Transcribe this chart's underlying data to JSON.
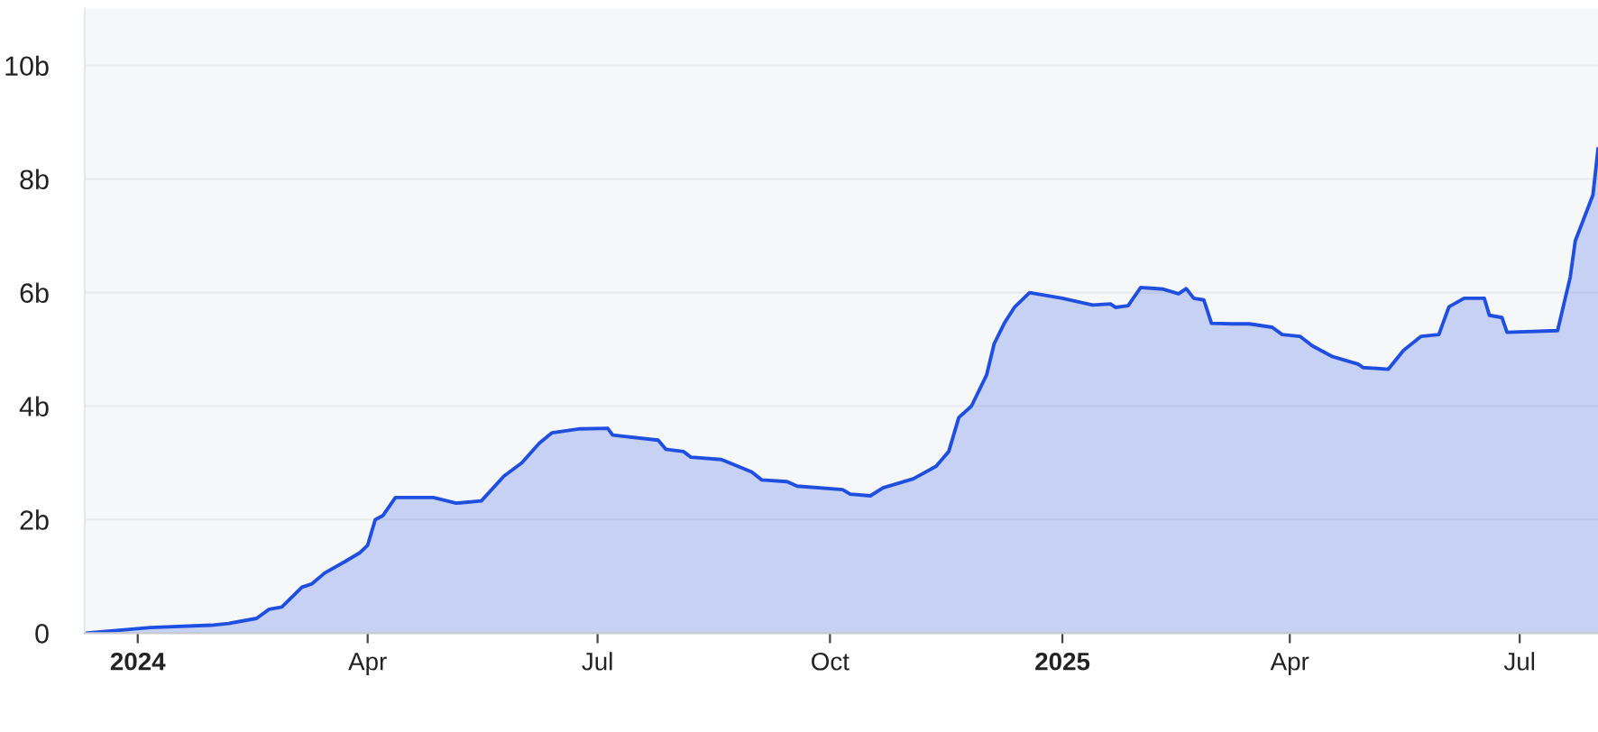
{
  "chart_data": {
    "type": "area",
    "x": [
      "2023-12-11",
      "2024-01-06",
      "2024-01-30",
      "2024-02-06",
      "2024-02-17",
      "2024-02-22",
      "2024-02-27",
      "2024-03-06",
      "2024-03-10",
      "2024-03-15",
      "2024-03-23",
      "2024-03-29",
      "2024-04-01",
      "2024-04-04",
      "2024-04-07",
      "2024-04-12",
      "2024-04-27",
      "2024-05-06",
      "2024-05-16",
      "2024-05-25",
      "2024-06-01",
      "2024-06-08",
      "2024-06-13",
      "2024-06-24",
      "2024-07-05",
      "2024-07-07",
      "2024-07-25",
      "2024-07-28",
      "2024-08-04",
      "2024-08-07",
      "2024-08-19",
      "2024-08-31",
      "2024-09-04",
      "2024-09-14",
      "2024-09-18",
      "2024-10-06",
      "2024-10-09",
      "2024-10-17",
      "2024-10-22",
      "2024-11-03",
      "2024-11-12",
      "2024-11-17",
      "2024-11-21",
      "2024-11-26",
      "2024-12-02",
      "2024-12-05",
      "2024-12-09",
      "2024-12-13",
      "2024-12-19",
      "2025-01-01",
      "2025-01-13",
      "2025-01-20",
      "2025-01-22",
      "2025-01-27",
      "2025-02-01",
      "2025-02-10",
      "2025-02-16",
      "2025-02-19",
      "2025-02-22",
      "2025-02-26",
      "2025-03-01",
      "2025-03-09",
      "2025-03-16",
      "2025-03-25",
      "2025-03-29",
      "2025-04-05",
      "2025-04-10",
      "2025-04-18",
      "2025-04-28",
      "2025-04-30",
      "2025-05-10",
      "2025-05-16",
      "2025-05-23",
      "2025-05-30",
      "2025-06-03",
      "2025-06-09",
      "2025-06-17",
      "2025-06-19",
      "2025-06-24",
      "2025-06-26",
      "2025-07-16",
      "2025-07-21",
      "2025-07-23",
      "2025-07-30",
      "2025-08-01"
    ],
    "series": [
      {
        "color": "#1f4fe0",
        "values": [
          0,
          0.1,
          0.14,
          0.17,
          0.26,
          0.42,
          0.46,
          0.81,
          0.87,
          1.06,
          1.26,
          1.42,
          1.55,
          2.0,
          2.07,
          2.39,
          2.39,
          2.29,
          2.33,
          2.77,
          3.0,
          3.35,
          3.53,
          3.6,
          3.61,
          3.49,
          3.4,
          3.24,
          3.2,
          3.1,
          3.06,
          2.84,
          2.7,
          2.67,
          2.59,
          2.53,
          2.45,
          2.42,
          2.56,
          2.72,
          2.94,
          3.2,
          3.8,
          4.0,
          4.55,
          5.1,
          5.46,
          5.74,
          6.0,
          5.9,
          5.78,
          5.8,
          5.74,
          5.77,
          6.09,
          6.06,
          5.98,
          6.07,
          5.9,
          5.87,
          5.46,
          5.45,
          5.45,
          5.39,
          5.26,
          5.23,
          5.06,
          4.87,
          4.74,
          4.68,
          4.65,
          4.98,
          5.23,
          5.26,
          5.75,
          5.9,
          5.9,
          5.6,
          5.56,
          5.3,
          5.33,
          6.27,
          6.91,
          7.72,
          8.53
        ]
      }
    ],
    "xlim": [
      "2023-12-11",
      "2025-08-01"
    ],
    "xticks": [
      {
        "value": "2024-01-01",
        "label": "2024"
      },
      {
        "value": "2024-04-01",
        "label": "Apr"
      },
      {
        "value": "2024-07-01",
        "label": "Jul"
      },
      {
        "value": "2024-10-01",
        "label": "Oct"
      },
      {
        "value": "2025-01-01",
        "label": "2025"
      },
      {
        "value": "2025-04-01",
        "label": "Apr"
      },
      {
        "value": "2025-07-01",
        "label": "Jul"
      }
    ],
    "ylim": [
      0,
      11
    ],
    "yticks": [
      0,
      {
        "value": 2,
        "label": "2b"
      },
      {
        "value": 4,
        "label": "4b"
      },
      {
        "value": 6,
        "label": "6b"
      },
      {
        "value": 8,
        "label": "8b"
      },
      {
        "value": 10,
        "label": "10b"
      }
    ],
    "grid": "y"
  }
}
